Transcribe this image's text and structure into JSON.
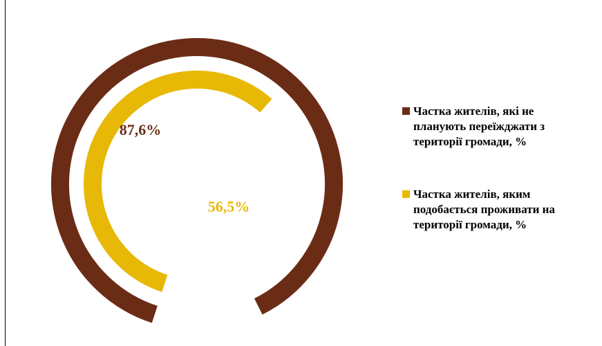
{
  "chart_data": {
    "type": "radial-bar",
    "title": "",
    "series": [
      {
        "name": "Частка жителів, які не планують переїжджати з території громади, %",
        "value": 87.6,
        "label": "87,6%",
        "color": "#6b2c16"
      },
      {
        "name": "Частка жителів, яким подобається проживати на території громади, %",
        "value": 56.5,
        "label": "56,5%",
        "color": "#e8b807"
      }
    ],
    "max": 100,
    "legend_position": "right"
  }
}
